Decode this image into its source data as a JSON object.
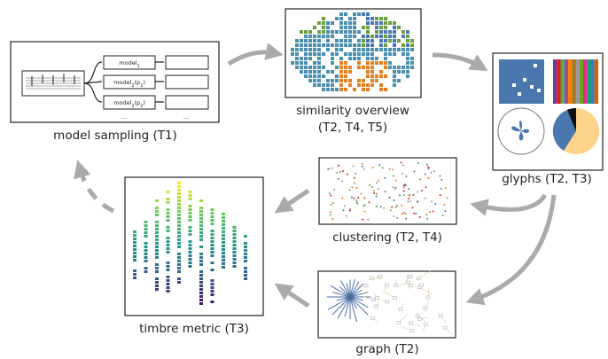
{
  "nodes": [
    {
      "label": "model sampling (T1)"
    },
    {
      "label": "similarity overview",
      "label2": "(T2, T4, T5)"
    },
    {
      "label": "glyphs (T2, T3)"
    },
    {
      "label": "clustering (T2, T4)"
    },
    {
      "label": "timbre metric (T3)"
    },
    {
      "label": "graph (T2)"
    }
  ],
  "model_boxes": [
    [
      {
        "t": "model"
      },
      {
        "t": "1",
        "sub": true
      }
    ],
    [
      {
        "t": "model"
      },
      {
        "t": "2",
        "sub": true
      },
      {
        "t": "(p"
      },
      {
        "t": "1",
        "sub": true
      },
      {
        "t": ")"
      }
    ],
    [
      {
        "t": "model"
      },
      {
        "t": "2",
        "sub": true
      },
      {
        "t": "(p"
      },
      {
        "t": "2",
        "sub": true
      },
      {
        "t": ")"
      }
    ]
  ],
  "ellipses": [
    "...",
    "..."
  ]
}
